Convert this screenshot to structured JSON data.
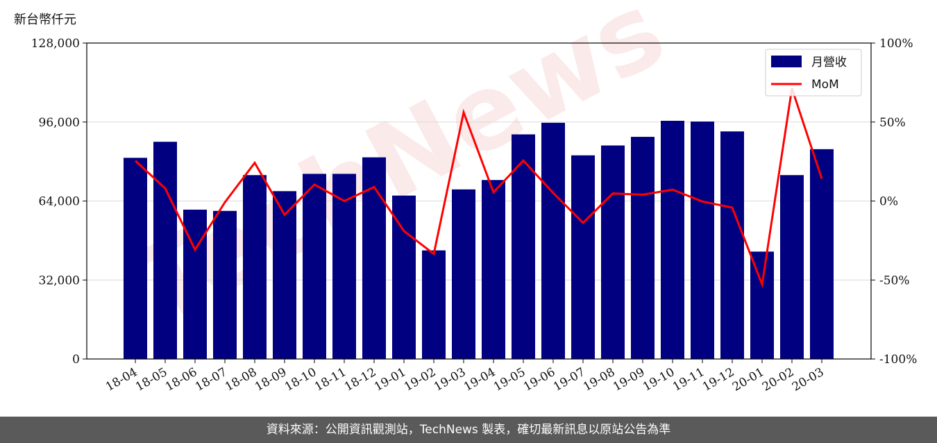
{
  "unit_label": "新台幣仟元",
  "footer_text": "資料來源：公開資訊觀測站，TechNews 製表，確切最新訊息以原站公告為準",
  "watermark": "TechNews",
  "colors": {
    "bar": "#000080",
    "line": "#ff0000",
    "footer_bg": "#5a5a5a",
    "grid": "#d9d9d9"
  },
  "chart_data": {
    "type": "bar",
    "categories": [
      "18-04",
      "18-05",
      "18-06",
      "18-07",
      "18-08",
      "18-09",
      "18-10",
      "18-11",
      "18-12",
      "19-01",
      "19-02",
      "19-03",
      "19-04",
      "19-05",
      "19-06",
      "19-07",
      "19-08",
      "19-09",
      "19-10",
      "19-11",
      "19-12",
      "20-01",
      "20-02",
      "20-03"
    ],
    "series": [
      {
        "name": "月營收",
        "type": "bar",
        "axis": "left",
        "values": [
          81500,
          88000,
          60500,
          60000,
          74500,
          68000,
          75000,
          75000,
          81700,
          66200,
          44000,
          68700,
          72500,
          91000,
          95700,
          82500,
          86500,
          90000,
          96500,
          96200,
          92200,
          43500,
          74500,
          85000
        ]
      },
      {
        "name": "MoM",
        "type": "line",
        "axis": "right",
        "values": [
          25.5,
          8.0,
          -30.8,
          -0.8,
          24.2,
          -8.7,
          10.4,
          0.0,
          8.9,
          -19.0,
          -33.5,
          56.1,
          5.5,
          25.6,
          5.1,
          -13.8,
          4.8,
          4.0,
          7.2,
          -0.3,
          -4.2,
          -52.8,
          71.3,
          14.1
        ]
      }
    ],
    "left_axis": {
      "ylim": [
        0,
        128000
      ],
      "ticks": [
        0,
        32000,
        64000,
        96000,
        128000
      ],
      "tick_labels": [
        "0",
        "32,000",
        "64,000",
        "96,000",
        "128,000"
      ]
    },
    "right_axis": {
      "ylim": [
        -100,
        100
      ],
      "ticks": [
        -100,
        -50,
        0,
        50,
        100
      ],
      "tick_labels": [
        "-100%",
        "-50%",
        "0%",
        "50%",
        "100%"
      ]
    },
    "grid": "horizontal",
    "legend": {
      "position": "top-right",
      "entries": [
        "月營收",
        "MoM"
      ]
    }
  }
}
